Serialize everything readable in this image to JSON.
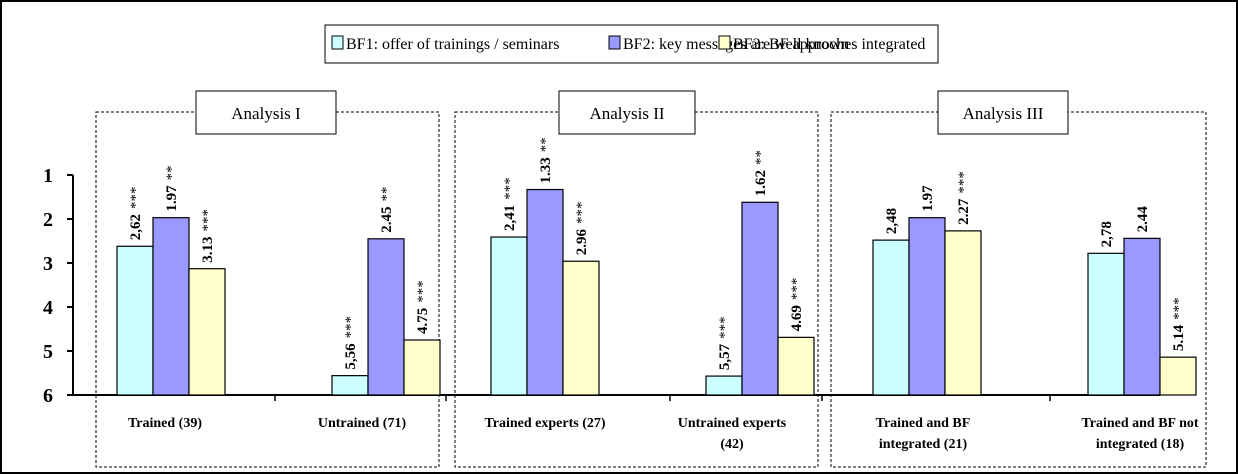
{
  "chart_data": {
    "type": "bar",
    "y_axis": {
      "ticks": [
        1,
        2,
        3,
        4,
        5,
        6
      ],
      "ylim": [
        1,
        6
      ],
      "reversed": true,
      "baseline": 6
    },
    "series": [
      {
        "name": "BF1: offer of trainings / seminars",
        "color": "#ccffff"
      },
      {
        "name": "BF2: key messages are well known",
        "color": "#9999ff"
      },
      {
        "name": "BF3: BF approches integrated",
        "color": "#ffffcc"
      }
    ],
    "panels": [
      {
        "title": "Analysis I",
        "groups": [
          {
            "label_lines": [
              "Trained (39)"
            ],
            "bars": [
              {
                "value": 2.62,
                "label": "2,62",
                "stars": "***"
              },
              {
                "value": 1.97,
                "label": "1.97",
                "stars": "**"
              },
              {
                "value": 3.13,
                "label": "3.13",
                "stars": "***"
              }
            ]
          },
          {
            "label_lines": [
              "Untrained (71)"
            ],
            "bars": [
              {
                "value": 5.56,
                "label": "5,56",
                "stars": "***"
              },
              {
                "value": 2.45,
                "label": "2.45",
                "stars": "**"
              },
              {
                "value": 4.75,
                "label": "4.75",
                "stars": "***"
              }
            ]
          }
        ]
      },
      {
        "title": "Analysis II",
        "groups": [
          {
            "label_lines": [
              "Trained experts (27)"
            ],
            "bars": [
              {
                "value": 2.41,
                "label": "2,41",
                "stars": "***"
              },
              {
                "value": 1.33,
                "label": "1.33",
                "stars": "**"
              },
              {
                "value": 2.96,
                "label": "2.96",
                "stars": "***"
              }
            ]
          },
          {
            "label_lines": [
              "Untrained experts",
              "(42)"
            ],
            "bars": [
              {
                "value": 5.57,
                "label": "5,57",
                "stars": "***"
              },
              {
                "value": 1.62,
                "label": "1.62",
                "stars": "**"
              },
              {
                "value": 4.69,
                "label": "4.69",
                "stars": "***"
              }
            ]
          }
        ]
      },
      {
        "title": "Analysis III",
        "groups": [
          {
            "label_lines": [
              "Trained and BF",
              "integrated (21)"
            ],
            "bars": [
              {
                "value": 2.48,
                "label": "2,48",
                "stars": ""
              },
              {
                "value": 1.97,
                "label": "1.97",
                "stars": ""
              },
              {
                "value": 2.27,
                "label": "2.27",
                "stars": "***"
              }
            ]
          },
          {
            "label_lines": [
              "Trained and BF not",
              "integrated (18)"
            ],
            "bars": [
              {
                "value": 2.78,
                "label": "2,78",
                "stars": ""
              },
              {
                "value": 2.44,
                "label": "2.44",
                "stars": ""
              },
              {
                "value": 5.14,
                "label": "5.14",
                "stars": "***"
              }
            ]
          }
        ]
      }
    ]
  }
}
